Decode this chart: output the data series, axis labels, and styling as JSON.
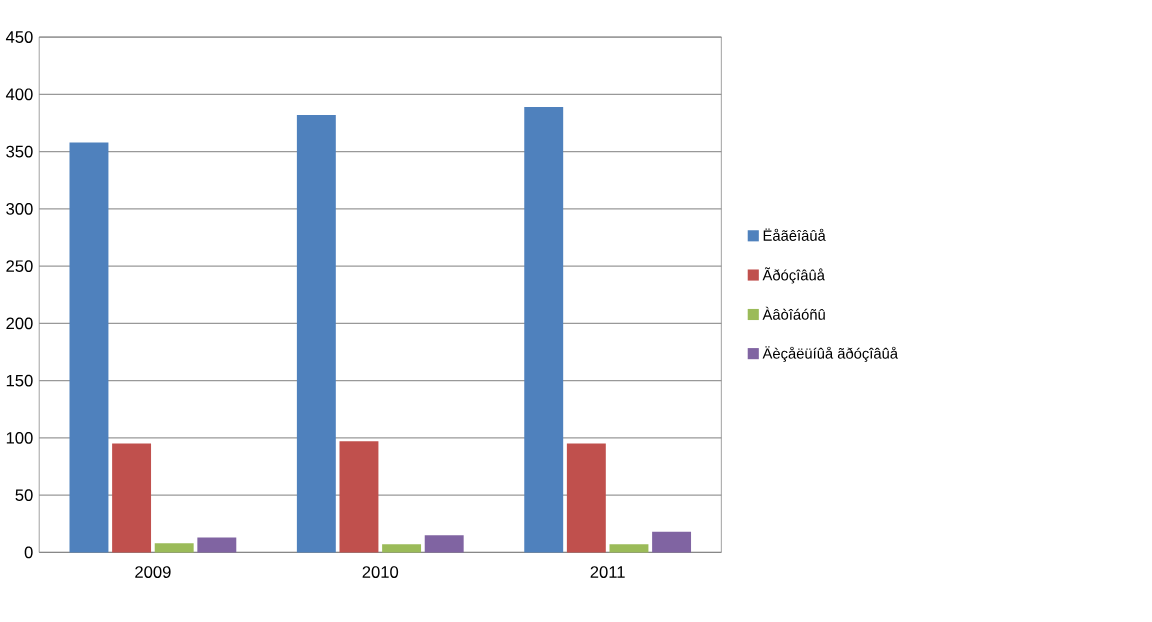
{
  "chart_data": {
    "type": "bar",
    "categories": [
      "2009",
      "2010",
      "2011"
    ],
    "series": [
      {
        "name": "Ëåãêîâûå",
        "color": "#4f81bd",
        "values": [
          358,
          382,
          389
        ]
      },
      {
        "name": "Ãðóçîâûå",
        "color": "#c0504d",
        "values": [
          95,
          97,
          95
        ]
      },
      {
        "name": "Àâòîáóñû",
        "color": "#9bbb59",
        "values": [
          8,
          7,
          7
        ]
      },
      {
        "name": "Äèçåëüíûå ãðóçîâûå",
        "color": "#8064a2",
        "values": [
          13,
          15,
          18
        ]
      }
    ],
    "ylim": [
      0,
      450
    ],
    "yticks": [
      0,
      50,
      100,
      150,
      200,
      250,
      300,
      350,
      400,
      450
    ],
    "grid": "y",
    "legend": "right"
  }
}
